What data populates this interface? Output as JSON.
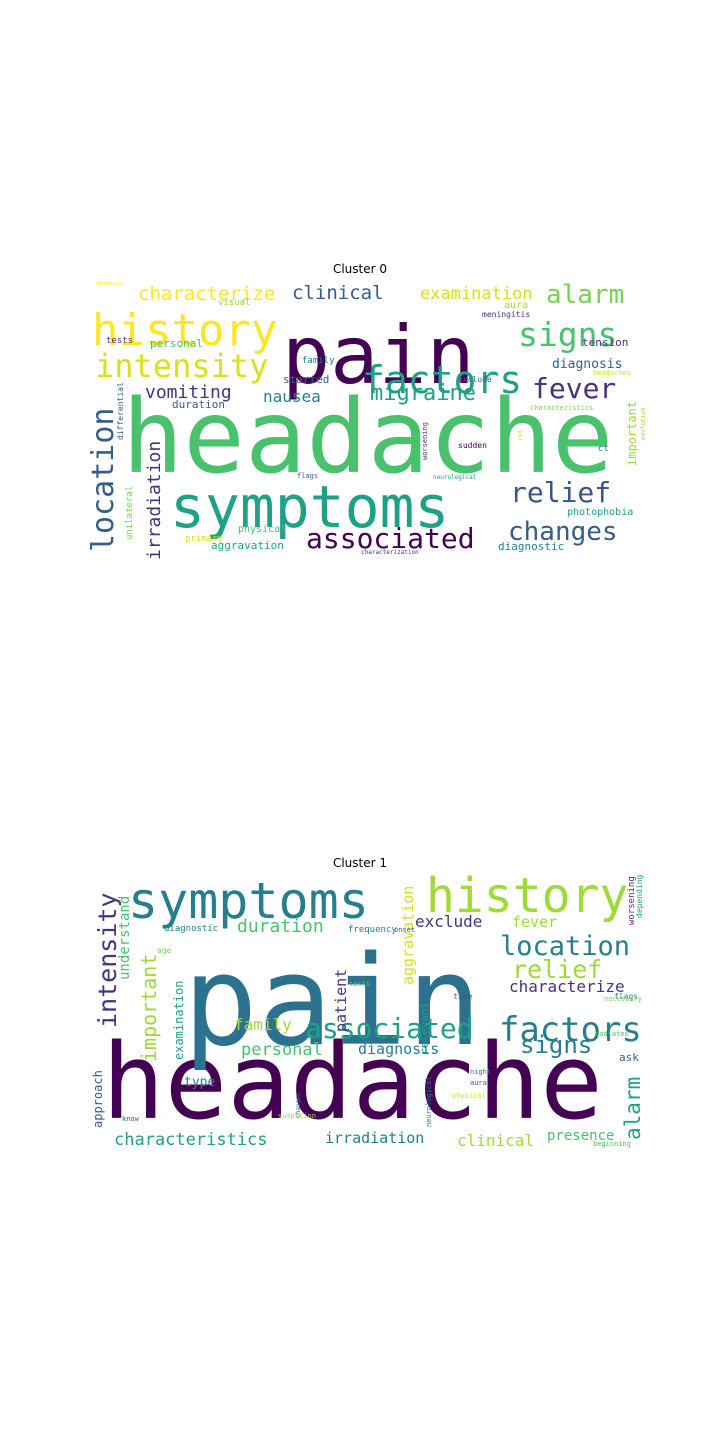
{
  "palette": {
    "dark_purple": "#440154",
    "purple": "#46327e",
    "blue": "#365c8d",
    "teal_blue": "#277f8e",
    "teal": "#1fa187",
    "green": "#4ac16d",
    "lime": "#a0da39",
    "yellow": "#fde725"
  },
  "panels": [
    {
      "title": "Cluster 0",
      "words": [
        {
          "text": "headache",
          "color": "#4ac16d"
        },
        {
          "text": "pain",
          "color": "#440154"
        },
        {
          "text": "symptoms",
          "color": "#1fa187"
        },
        {
          "text": "history",
          "color": "#fde725"
        },
        {
          "text": "factors",
          "color": "#1fa187"
        },
        {
          "text": "signs",
          "color": "#4ac16d"
        },
        {
          "text": "intensity",
          "color": "#d8e219"
        },
        {
          "text": "alarm",
          "color": "#7ad151"
        },
        {
          "text": "location",
          "color": "#365c8d"
        },
        {
          "text": "relief",
          "color": "#3b528b"
        },
        {
          "text": "associated",
          "color": "#440154"
        },
        {
          "text": "changes",
          "color": "#365c8d"
        },
        {
          "text": "fever",
          "color": "#46327e"
        },
        {
          "text": "migraine",
          "color": "#1fa187"
        },
        {
          "text": "characterize",
          "color": "#fde725"
        },
        {
          "text": "clinical",
          "color": "#365c8d"
        },
        {
          "text": "examination",
          "color": "#d8e219"
        },
        {
          "text": "vomiting",
          "color": "#46327e"
        },
        {
          "text": "irradiation",
          "color": "#46327e"
        },
        {
          "text": "nausea",
          "color": "#277f8e"
        },
        {
          "text": "diagnosis",
          "color": "#365c8d"
        },
        {
          "text": "tension",
          "color": "#46327e"
        },
        {
          "text": "aura",
          "color": "#a0da39"
        },
        {
          "text": "meningitis",
          "color": "#46327e"
        },
        {
          "text": "personal",
          "color": "#4ac16d"
        },
        {
          "text": "visual",
          "color": "#a0da39"
        },
        {
          "text": "tests",
          "color": "#46327e"
        },
        {
          "text": "family",
          "color": "#277f8e"
        },
        {
          "text": "started",
          "color": "#365c8d"
        },
        {
          "text": "duration",
          "color": "#365c8d"
        },
        {
          "text": "important",
          "color": "#a0da39"
        },
        {
          "text": "photophobia",
          "color": "#1fa187"
        },
        {
          "text": "diagnostic",
          "color": "#277f8e"
        },
        {
          "text": "aggravation",
          "color": "#1fa187"
        },
        {
          "text": "primary",
          "color": "#d8e219"
        },
        {
          "text": "physical",
          "color": "#4ac16d"
        },
        {
          "text": "unilateral",
          "color": "#7ad151"
        },
        {
          "text": "differential",
          "color": "#365c8d"
        },
        {
          "text": "worsening",
          "color": "#46327e"
        },
        {
          "text": "exclude",
          "color": "#365c8d"
        },
        {
          "text": "characteristics",
          "color": "#7ad151"
        },
        {
          "text": "headaches",
          "color": "#d8e219"
        },
        {
          "text": "sudden",
          "color": "#440154"
        },
        {
          "text": "ct",
          "color": "#277f8e"
        },
        {
          "text": "neurological",
          "color": "#1fa187"
        },
        {
          "text": "flags",
          "color": "#365c8d"
        },
        {
          "text": "red",
          "color": "#d8e219"
        },
        {
          "text": "evolution",
          "color": "#a0da39"
        },
        {
          "text": "characterization",
          "color": "#46327e"
        },
        {
          "text": "diagnoses",
          "color": "#fde725"
        }
      ]
    },
    {
      "title": "Cluster 1",
      "words": [
        {
          "text": "headache",
          "color": "#440154"
        },
        {
          "text": "pain",
          "color": "#2c728e"
        },
        {
          "text": "symptoms",
          "color": "#277f8e"
        },
        {
          "text": "history",
          "color": "#a0da39"
        },
        {
          "text": "location",
          "color": "#277f8e"
        },
        {
          "text": "factors",
          "color": "#277f8e"
        },
        {
          "text": "associated",
          "color": "#1fa187"
        },
        {
          "text": "intensity",
          "color": "#46327e"
        },
        {
          "text": "relief",
          "color": "#a0da39"
        },
        {
          "text": "signs",
          "color": "#277f8e"
        },
        {
          "text": "characterize",
          "color": "#46327e"
        },
        {
          "text": "alarm",
          "color": "#1fa187"
        },
        {
          "text": "important",
          "color": "#a0da39"
        },
        {
          "text": "duration",
          "color": "#4ac16d"
        },
        {
          "text": "exclude",
          "color": "#46327e"
        },
        {
          "text": "fever",
          "color": "#a0da39"
        },
        {
          "text": "family",
          "color": "#a0da39"
        },
        {
          "text": "personal",
          "color": "#4ac16d"
        },
        {
          "text": "diagnosis",
          "color": "#277f8e"
        },
        {
          "text": "characteristics",
          "color": "#1fa187"
        },
        {
          "text": "irradiation",
          "color": "#277f8e"
        },
        {
          "text": "clinical",
          "color": "#a0da39"
        },
        {
          "text": "presence",
          "color": "#4ac16d"
        },
        {
          "text": "aggravation",
          "color": "#d8e219"
        },
        {
          "text": "patient",
          "color": "#46327e"
        },
        {
          "text": "understand",
          "color": "#4ac16d"
        },
        {
          "text": "examination",
          "color": "#1fa187"
        },
        {
          "text": "type",
          "color": "#277f8e"
        },
        {
          "text": "approach",
          "color": "#365c8d"
        },
        {
          "text": "relevant",
          "color": "#1fa187"
        },
        {
          "text": "worsening",
          "color": "#46327e"
        },
        {
          "text": "depending",
          "color": "#1fa187"
        },
        {
          "text": "ask",
          "color": "#365c8d"
        },
        {
          "text": "diagnostic",
          "color": "#277f8e"
        },
        {
          "text": "frequency",
          "color": "#277f8e"
        },
        {
          "text": "onset",
          "color": "#365c8d"
        },
        {
          "text": "age",
          "color": "#7ad151"
        },
        {
          "text": "tests",
          "color": "#4ac16d"
        },
        {
          "text": "flags",
          "color": "#277f8e"
        },
        {
          "text": "time",
          "color": "#365c8d"
        },
        {
          "text": "necessary",
          "color": "#7ad151"
        },
        {
          "text": "radiates",
          "color": "#4ac16d"
        },
        {
          "text": "night",
          "color": "#277f8e"
        },
        {
          "text": "aura",
          "color": "#365c8d"
        },
        {
          "text": "physical",
          "color": "#d8e219"
        },
        {
          "text": "neurological",
          "color": "#277f8e"
        },
        {
          "text": "suspicion",
          "color": "#a0da39"
        },
        {
          "text": "changes",
          "color": "#277f8e"
        },
        {
          "text": "know",
          "color": "#365c8d"
        },
        {
          "text": "beginning",
          "color": "#4ac16d"
        }
      ]
    }
  ]
}
